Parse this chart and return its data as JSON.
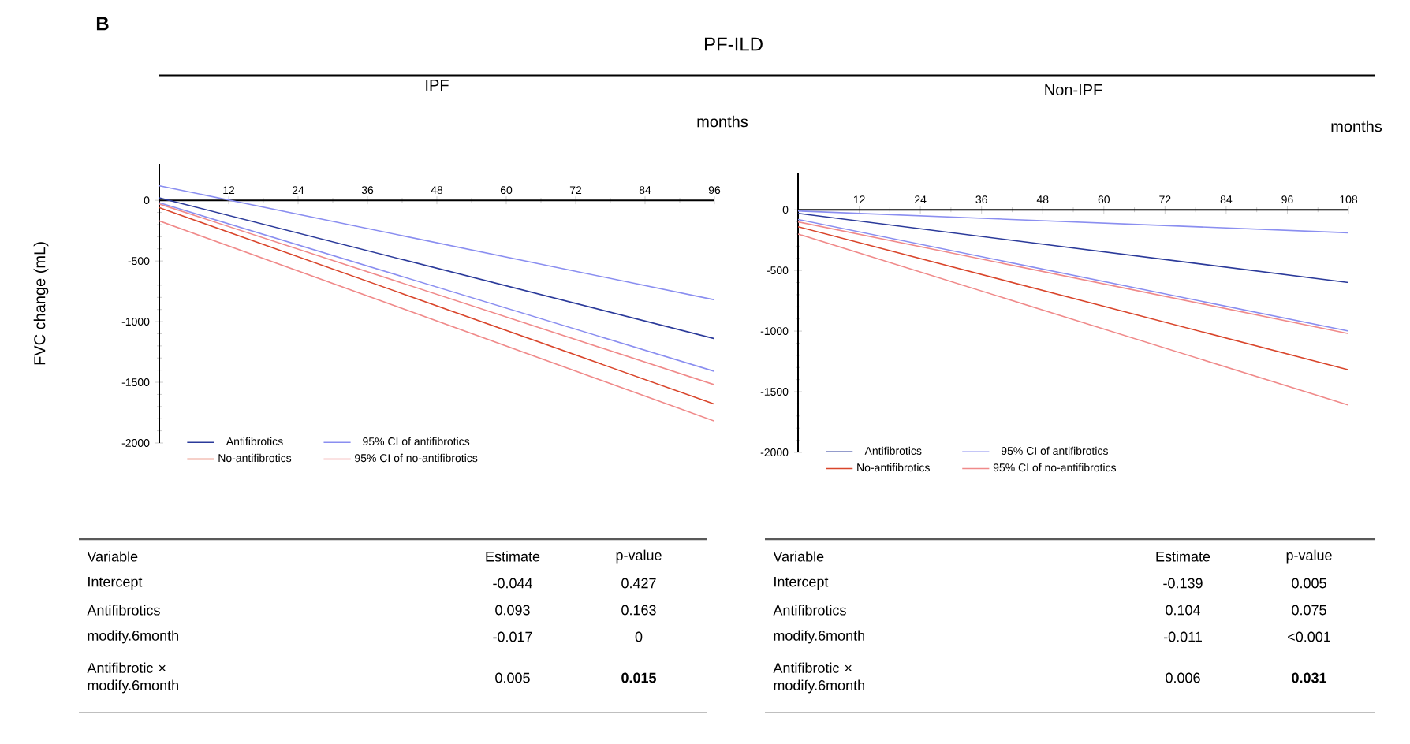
{
  "chart_data": [
    {
      "type": "other",
      "title": "PF-ILD",
      "annotations": [
        "B"
      ]
    },
    {
      "type": "line",
      "title": "IPF",
      "xlabel": "months",
      "ylabel": "FVC  change (mL)",
      "x": [
        0,
        96
      ],
      "xlim": [
        0,
        96
      ],
      "xticks": [
        12,
        24,
        36,
        48,
        60,
        72,
        84,
        96
      ],
      "ylim": [
        -2000,
        300
      ],
      "yticks": [
        -2000,
        -1500,
        -1000,
        -500,
        0
      ],
      "legend": "bottom",
      "marker": "none",
      "line_style": "solid",
      "series": [
        {
          "name": "Antifibrotics",
          "color": "#2b3a9a",
          "values": [
            20,
            -1140
          ]
        },
        {
          "name": "95% CI of antifibrotics",
          "color": "#8a8ef0",
          "values": [
            120,
            -820
          ]
        },
        {
          "name": "No-antifibrotics",
          "color": "#d9452b",
          "values": [
            -60,
            -1680
          ]
        },
        {
          "name": "95% CI of no-antifibrotics",
          "color": "#f08a8a",
          "values": [
            -30,
            -1520
          ]
        },
        {
          "color": "#8a8ef0",
          "values": [
            -20,
            -1410
          ]
        },
        {
          "color": "#f08a8a",
          "values": [
            -170,
            -1820
          ]
        }
      ],
      "annotations": [
        "Variable",
        "Estimate",
        "p-value",
        "Intercept",
        "-0.044",
        "0.427",
        "Antifibrotics",
        "0.093",
        "0.163",
        "modify.6month",
        "-0.017",
        "0",
        "Antifibrotic × modify.6month",
        "0.005",
        "0.015"
      ]
    },
    {
      "type": "line",
      "title": "Non-IPF",
      "xlabel": "months",
      "x": [
        0,
        108
      ],
      "xlim": [
        0,
        108
      ],
      "xticks": [
        12,
        24,
        36,
        48,
        60,
        72,
        84,
        96,
        108
      ],
      "ylim": [
        -2000,
        300
      ],
      "yticks": [
        -2000,
        -1500,
        -1000,
        -500,
        0
      ],
      "legend": "bottom",
      "marker": "none",
      "line_style": "solid",
      "series": [
        {
          "name": "Antifibrotics",
          "color": "#2b3a9a",
          "values": [
            -30,
            -600
          ]
        },
        {
          "name": "95% CI of antifibrotics",
          "color": "#8a8ef0",
          "values": [
            -10,
            -190
          ]
        },
        {
          "name": "No-antifibrotics",
          "color": "#d9452b",
          "values": [
            -140,
            -1320
          ]
        },
        {
          "name": "95% CI of no-antifibrotics",
          "color": "#f08a8a",
          "values": [
            -100,
            -1020
          ]
        },
        {
          "color": "#8a8ef0",
          "values": [
            -80,
            -1000
          ]
        },
        {
          "color": "#f08a8a",
          "values": [
            -200,
            -1610
          ]
        }
      ],
      "annotations": [
        "Variable",
        "Estimate",
        "p-value",
        "Intercept",
        "-0.139",
        "0.005",
        "Antifibrotics",
        "0.104",
        "0.075",
        "modify.6month",
        "-0.011",
        "<0.001",
        "Antifibrotic × modify.6month",
        "0.006",
        "0.031"
      ]
    }
  ]
}
